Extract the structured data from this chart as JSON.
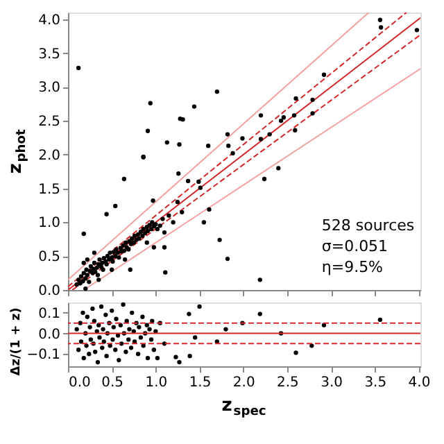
{
  "chart_data": [
    {
      "type": "scatter",
      "ylabel": "z$_{phot}$",
      "xlim": [
        0,
        4.02
      ],
      "ylim": [
        0,
        4.1
      ],
      "tick_labels": "y",
      "grid": false,
      "xticks": [
        {
          "value": 0,
          "label": null
        },
        {
          "value": 0.5,
          "label": null
        },
        {
          "value": 1,
          "label": null
        },
        {
          "value": 1.5,
          "label": null
        },
        {
          "value": 2,
          "label": null
        },
        {
          "value": 2.5,
          "label": null
        },
        {
          "value": 3,
          "label": null
        },
        {
          "value": 3.5,
          "label": null
        },
        {
          "value": 4,
          "label": null
        }
      ],
      "yticks": [
        {
          "value": 0,
          "label": "0.0"
        },
        {
          "value": 0.5,
          "label": "0.5"
        },
        {
          "value": 1,
          "label": "1.0"
        },
        {
          "value": 1.5,
          "label": "1.5"
        },
        {
          "value": 2,
          "label": "2.0"
        },
        {
          "value": 2.5,
          "label": "2.5"
        },
        {
          "value": 3,
          "label": "3.0"
        },
        {
          "value": 3.5,
          "label": "3.5"
        },
        {
          "value": 4,
          "label": "4.0"
        }
      ],
      "annotations": [
        "528 sources",
        "σ=0.051",
        "η=9.5%"
      ],
      "series": [
        {
          "type": "line",
          "color": "#f4a0a0",
          "line_style": "solid",
          "x": [
            0,
            3.43
          ],
          "values": [
            0.15,
            4.1
          ]
        },
        {
          "type": "line",
          "color": "#f4a0a0",
          "line_style": "solid",
          "x": [
            0.18,
            4.02
          ],
          "values": [
            0,
            3.27
          ]
        },
        {
          "type": "line",
          "color": "#d62728",
          "line_style": "dashed",
          "x": [
            0,
            3.86
          ],
          "values": [
            0.05,
            4.1
          ]
        },
        {
          "type": "line",
          "color": "#d62728",
          "line_style": "dashed",
          "x": [
            0.05,
            4.02
          ],
          "values": [
            0,
            3.77
          ]
        },
        {
          "type": "line",
          "color": "#d62728",
          "line_style": "solid",
          "x": [
            0,
            4.02
          ],
          "values": [
            0,
            4.02
          ]
        },
        {
          "color": "#000000",
          "marker": "circle",
          "x": [
            0.1,
            0.12,
            0.14,
            0.15,
            0.17,
            0.18,
            0.2,
            0.21,
            0.22,
            0.24,
            0.25,
            0.26,
            0.28,
            0.29,
            0.3,
            0.31,
            0.33,
            0.34,
            0.35,
            0.36,
            0.38,
            0.39,
            0.4,
            0.41,
            0.43,
            0.44,
            0.45,
            0.47,
            0.48,
            0.5,
            0.51,
            0.52,
            0.54,
            0.55,
            0.57,
            0.58,
            0.6,
            0.61,
            0.63,
            0.64,
            0.66,
            0.67,
            0.69,
            0.7,
            0.72,
            0.73,
            0.75,
            0.76,
            0.78,
            0.8,
            0.81,
            0.83,
            0.85,
            0.86,
            0.88,
            0.9,
            0.91,
            0.93,
            0.95,
            0.96,
            0.98,
            1.0,
            1.02,
            1.05,
            1.08,
            1.1,
            1.15,
            1.2,
            1.25,
            1.3,
            0.18,
            0.3,
            0.2,
            0.35,
            0.5,
            0.65,
            0.9,
            0.22,
            0.12,
            0.94,
            0.91,
            1.13,
            1.28,
            1.31,
            1.27,
            1.44,
            0.86,
            1.7,
            1.6,
            1.82,
            1.83,
            1.88,
            1.99,
            2.2,
            2.2,
            2.3,
            2.43,
            2.46,
            2.58,
            2.6,
            2.59,
            2.79,
            2.79,
            2.92,
            3.56,
            3.57,
            3.98,
            0.86,
            0.64,
            1.26,
            1.37,
            1.49,
            2.24,
            2.4,
            1.51,
            1.55,
            1.61,
            1.73,
            1.82,
            2.19,
            0.44,
            0.54,
            0.18,
            1.11,
            0.71,
            0.98,
            1.1,
            0.97
          ],
          "values": [
            0.08,
            0.15,
            0.1,
            0.2,
            0.13,
            0.25,
            0.17,
            0.3,
            0.22,
            0.12,
            0.28,
            0.35,
            0.25,
            0.31,
            0.4,
            0.27,
            0.33,
            0.22,
            0.38,
            0.45,
            0.34,
            0.4,
            0.3,
            0.47,
            0.42,
            0.38,
            0.5,
            0.45,
            0.55,
            0.48,
            0.42,
            0.56,
            0.5,
            0.6,
            0.55,
            0.48,
            0.62,
            0.57,
            0.66,
            0.58,
            0.7,
            0.63,
            0.6,
            0.72,
            0.68,
            0.76,
            0.7,
            0.8,
            0.74,
            0.82,
            0.76,
            0.86,
            0.8,
            0.9,
            0.84,
            0.93,
            0.87,
            0.96,
            0.9,
            1.0,
            0.94,
            0.97,
            0.9,
            0.95,
            1.05,
            0.85,
            1.1,
            1.0,
            1.3,
            1.15,
            0.4,
            0.55,
            0.02,
            0.15,
            0.3,
            0.45,
            0.7,
            0.45,
            3.28,
            2.76,
            2.35,
            2.18,
            2.53,
            2.52,
            2.15,
            2.71,
            1.96,
            2.93,
            2.13,
            2.3,
            2.13,
            2.02,
            2.24,
            2.58,
            2.23,
            2.3,
            2.5,
            2.55,
            2.58,
            2.83,
            2.36,
            2.61,
            2.81,
            3.18,
            3.99,
            3.88,
            3.84,
            1.97,
            1.64,
            1.72,
            1.61,
            1.6,
            1.64,
            1.8,
            1.51,
            1.0,
            1.19,
            0.74,
            0.46,
            0.15,
            1.12,
            1.24,
            0.83,
            0.26,
            0.3,
            0.63,
            0.63,
            1.32
          ]
        }
      ]
    },
    {
      "type": "scatter",
      "xlabel": "z$_{spec}$",
      "ylabel": "Δz/(1 + z)",
      "xlim": [
        0,
        4.02
      ],
      "ylim": [
        -0.16,
        0.15
      ],
      "grid": false,
      "xticks": [
        {
          "value": 0,
          "label": "0.0"
        },
        {
          "value": 0.5,
          "label": "0.5"
        },
        {
          "value": 1,
          "label": "1.0"
        },
        {
          "value": 1.5,
          "label": "1.5"
        },
        {
          "value": 2,
          "label": "2.0"
        },
        {
          "value": 2.5,
          "label": "2.5"
        },
        {
          "value": 3,
          "label": "3.0"
        },
        {
          "value": 3.5,
          "label": "3.5"
        },
        {
          "value": 4,
          "label": "4.0"
        }
      ],
      "yticks": [
        {
          "value": -0.1,
          "label": "−0.1"
        },
        {
          "value": 0,
          "label": "0.0"
        },
        {
          "value": 0.1,
          "label": "0.1"
        }
      ],
      "ref_lines": [
        {
          "axis": "y",
          "value": 0,
          "color": "#d62728",
          "line_style": "solid"
        },
        {
          "axis": "y",
          "value": 0.05,
          "color": "#d62728",
          "line_style": "dashed"
        },
        {
          "axis": "y",
          "value": -0.05,
          "color": "#d62728",
          "line_style": "dashed"
        }
      ],
      "series": [
        {
          "color": "#000000",
          "marker": "circle",
          "x": [
            0.1,
            0.12,
            0.14,
            0.15,
            0.17,
            0.18,
            0.2,
            0.21,
            0.22,
            0.24,
            0.25,
            0.26,
            0.28,
            0.29,
            0.3,
            0.31,
            0.33,
            0.34,
            0.35,
            0.36,
            0.38,
            0.39,
            0.4,
            0.41,
            0.43,
            0.44,
            0.45,
            0.47,
            0.48,
            0.5,
            0.51,
            0.52,
            0.54,
            0.55,
            0.57,
            0.58,
            0.6,
            0.61,
            0.63,
            0.64,
            0.66,
            0.67,
            0.69,
            0.7,
            0.72,
            0.73,
            0.75,
            0.76,
            0.78,
            0.8,
            0.81,
            0.83,
            0.85,
            0.86,
            0.88,
            0.9,
            0.91,
            0.93,
            0.95,
            0.96,
            0.98,
            1.0,
            1.02,
            1.05,
            1.1,
            1.23,
            1.27,
            1.38,
            1.39,
            1.5,
            1.99,
            2.19,
            2.43,
            2.6,
            2.78,
            2.92,
            3.56,
            1.45,
            1.8,
            1.7
          ],
          "values": [
            0.02,
            -0.08,
            0.05,
            -0.04,
            0.1,
            -0.12,
            0.0,
            -0.06,
            0.08,
            -0.1,
            0.03,
            -0.03,
            0.12,
            -0.05,
            0.06,
            -0.09,
            0.01,
            -0.14,
            0.04,
            -0.02,
            0.13,
            -0.07,
            0.02,
            -0.04,
            0.09,
            -0.11,
            0.0,
            0.05,
            -0.06,
            0.11,
            -0.03,
            0.03,
            -0.08,
            0.07,
            -0.01,
            -0.13,
            0.04,
            -0.05,
            0.14,
            0.0,
            -0.09,
            0.06,
            -0.03,
            0.02,
            -0.07,
            0.1,
            0.01,
            -0.04,
            0.05,
            -0.1,
            0.03,
            -0.02,
            0.08,
            -0.06,
            0.0,
            0.04,
            -0.12,
            0.02,
            -0.03,
            0.06,
            -0.08,
            0.01,
            -0.12,
            0.05,
            -0.05,
            -0.115,
            -0.14,
            0.094,
            -0.11,
            0.13,
            0.05,
            0.094,
            0.0,
            -0.094,
            -0.06,
            0.04,
            0.066,
            -0.02,
            0.02,
            -0.04
          ]
        }
      ]
    }
  ]
}
